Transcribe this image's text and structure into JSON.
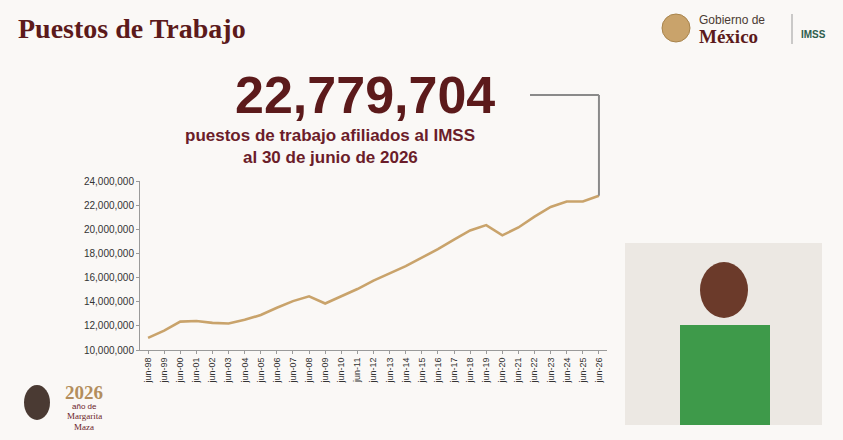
{
  "chart_data": {
    "type": "line",
    "title": "Puestos de Trabajo",
    "annotations": [
      "22,779,704",
      "puestos de trabajo afiliados al IMSS",
      "al 30 de junio de 2026"
    ],
    "categories": [
      "jun-98",
      "jun-99",
      "jun-00",
      "jun-01",
      "jun-02",
      "jun-03",
      "jun-04",
      "jun-05",
      "jun-06",
      "jun-07",
      "jun-08",
      "jun-09",
      "jun-10",
      "jun-11",
      "jun-12",
      "jun-13",
      "jun-14",
      "jun-15",
      "jun-16",
      "jun-17",
      "jun-18",
      "jun-19",
      "jun-20",
      "jun-21",
      "jun-22",
      "jun-23",
      "jun-24",
      "jun-25",
      "jun-26"
    ],
    "values": [
      11000000,
      11600000,
      12350000,
      12400000,
      12250000,
      12200000,
      12500000,
      12900000,
      13500000,
      14050000,
      14450000,
      13850000,
      14450000,
      15050000,
      15750000,
      16350000,
      16950000,
      17650000,
      18350000,
      19150000,
      19900000,
      20350000,
      19500000,
      20150000,
      21050000,
      21850000,
      22300000,
      22300000,
      22779704
    ],
    "color": "#C9A36B",
    "ylim": [
      10000000,
      24000000
    ],
    "yticks": [
      {
        "value": 10000000,
        "label": "10,000,000"
      },
      {
        "value": 12000000,
        "label": "12,000,000"
      },
      {
        "value": 14000000,
        "label": "14,000,000"
      },
      {
        "value": 16000000,
        "label": "16,000,000"
      },
      {
        "value": 18000000,
        "label": "18,000,000"
      },
      {
        "value": 20000000,
        "label": "20,000,000"
      },
      {
        "value": 22000000,
        "label": "22,000,000"
      },
      {
        "value": 24000000,
        "label": "24,000,000"
      }
    ],
    "grid": false
  },
  "branding": {
    "government": [
      "Gobierno de",
      "México"
    ],
    "institution": "IMSS",
    "footer": [
      "2026",
      "año de",
      "Margarita",
      "Maza"
    ]
  }
}
